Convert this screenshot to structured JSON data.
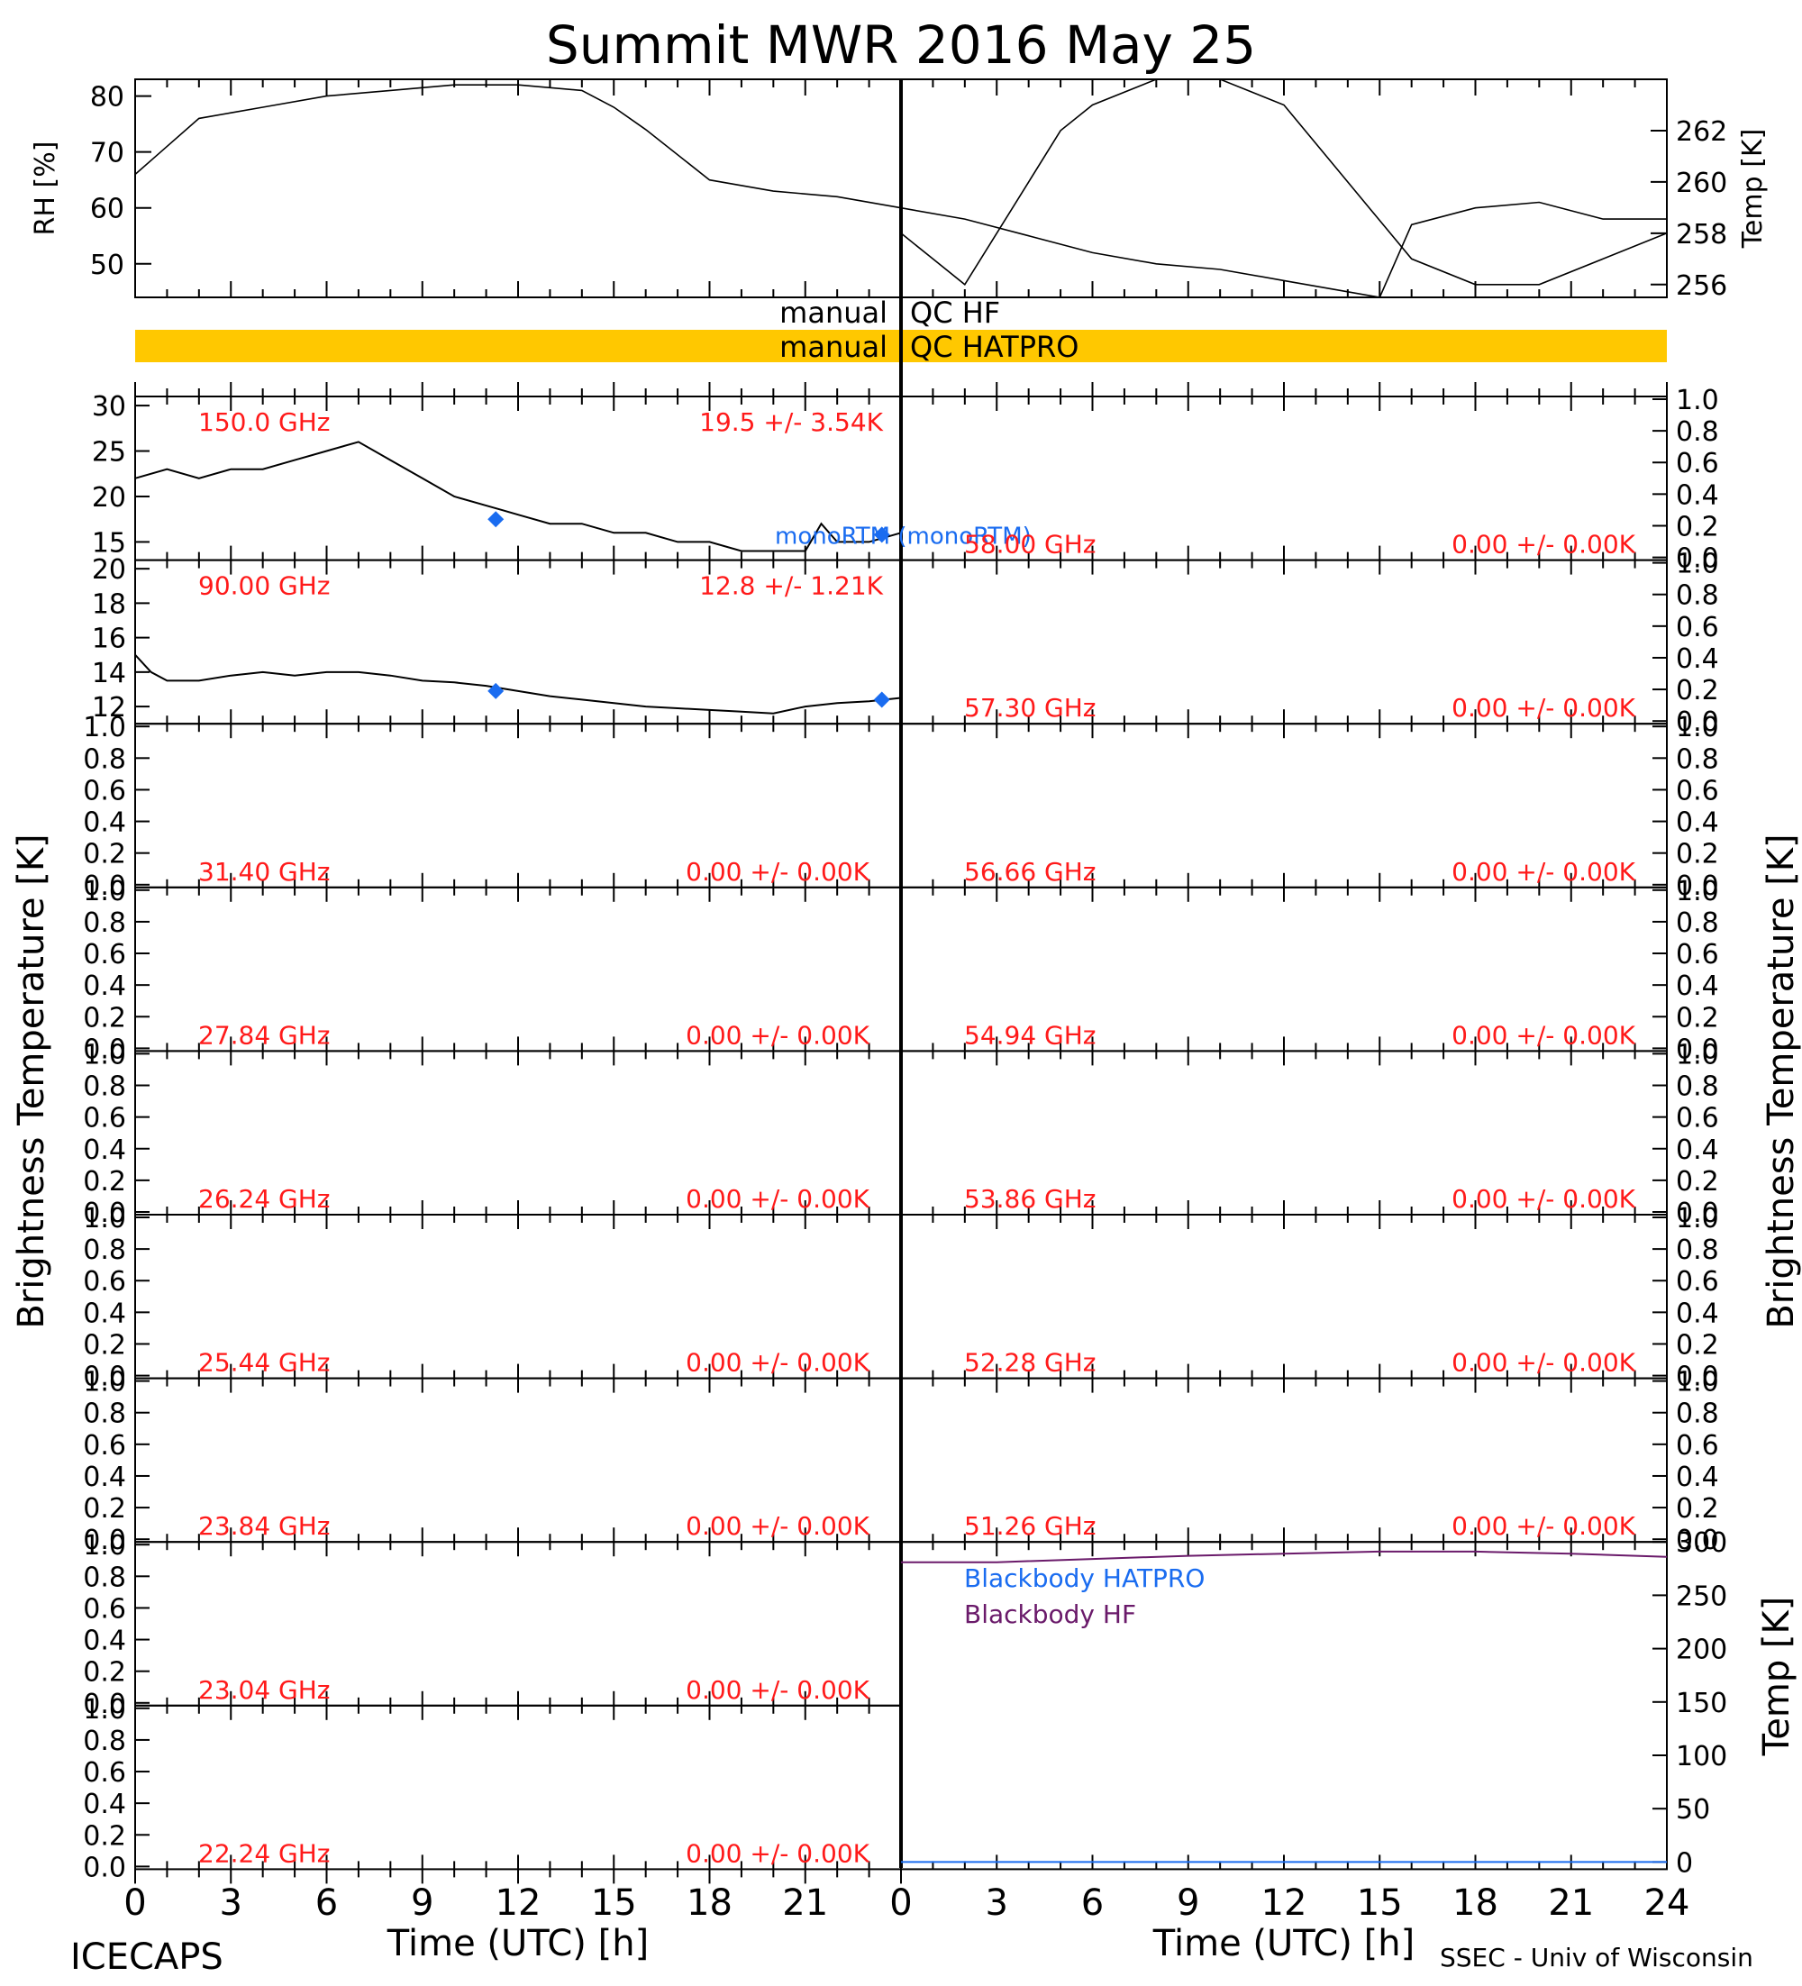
{
  "title": "Summit MWR 2016 May 25",
  "footer": {
    "left": "ICECAPS",
    "right": "SSEC - Univ of Wisconsin"
  },
  "xaxis": {
    "label": "Time (UTC) [h]",
    "ticks": [
      "0",
      "3",
      "6",
      "9",
      "12",
      "15",
      "18",
      "21",
      "24"
    ],
    "left_ticks": [
      "0",
      "3",
      "6",
      "9",
      "12",
      "15",
      "18",
      "21"
    ]
  },
  "ylabel_bt": "Brightness Temperature [K]",
  "colors": {
    "text": "#000000",
    "freq_label": "#ff1a1a",
    "monortm": "#1a6cf0",
    "qc_bar": "#ffc800",
    "bb_hatpro": "#1a6cf0",
    "bb_hf": "#6a1a6a"
  },
  "qc": {
    "hf_left": "manual",
    "hf_right": "QC HF",
    "hatpro_left": "manual",
    "hatpro_right": "QC HATPRO"
  },
  "chart_data": [
    {
      "type": "line",
      "panel": "rh",
      "ylabel": "RH [%]",
      "yticks": [
        "50",
        "60",
        "70",
        "80"
      ],
      "ylim": [
        44,
        83
      ],
      "xlim": [
        0,
        12
      ],
      "x": [
        0,
        0.4,
        1,
        1.5,
        2,
        3,
        4,
        5,
        6,
        7,
        7.5,
        8,
        9,
        10,
        11,
        12
      ],
      "y": [
        66,
        70,
        76,
        77,
        78,
        80,
        81,
        82,
        82,
        81,
        78,
        74,
        65,
        63,
        62,
        60
      ]
    },
    {
      "type": "line",
      "panel": "temp",
      "ylabel": "Temp [K]",
      "yticks": [
        "256",
        "258",
        "260",
        "262"
      ],
      "ylim": [
        255.5,
        264
      ],
      "xlim": [
        12,
        24
      ],
      "x": [
        12,
        12.5,
        13,
        13.5,
        14,
        14.5,
        15,
        16,
        17,
        18,
        19,
        20,
        21,
        22,
        23,
        24
      ],
      "y": [
        258,
        257,
        256,
        258,
        260,
        262,
        263,
        264,
        264,
        263,
        260,
        257,
        256,
        256,
        257,
        258
      ]
    },
    {
      "type": "line",
      "panel": "rh2",
      "ylabel": "",
      "yticks": [],
      "ylim": [
        44,
        83
      ],
      "xlim": [
        12,
        24
      ],
      "x": [
        12,
        13,
        14,
        15,
        16,
        17,
        18,
        19,
        19.5,
        20,
        21,
        22,
        23,
        24
      ],
      "y": [
        60,
        58,
        55,
        52,
        50,
        49,
        47,
        45,
        44,
        57,
        60,
        61,
        58,
        58
      ]
    },
    {
      "type": "line",
      "panel": "bt-150",
      "freq": "150.0 GHz",
      "stats": "19.5 +/-  3.54K",
      "ylim": [
        13,
        31
      ],
      "yticks": [
        "15",
        "20",
        "25",
        "30"
      ],
      "xlim": [
        0,
        24
      ],
      "x": [
        0,
        1,
        2,
        3,
        4,
        5,
        6,
        7,
        8,
        9,
        10,
        11,
        11.5,
        12,
        13,
        14,
        15,
        16,
        17,
        18,
        19,
        20,
        21,
        21.5,
        22,
        23,
        24
      ],
      "y": [
        22,
        23,
        22,
        23,
        23,
        24,
        25,
        26,
        24,
        22,
        20,
        19,
        18.5,
        18,
        17,
        17,
        16,
        16,
        15,
        15,
        14,
        14,
        14,
        17,
        15,
        15,
        16
      ],
      "monortm": {
        "label": "monoRTM (monoRTM)",
        "points": [
          [
            11.3,
            17.5
          ],
          [
            23.4,
            15.8
          ]
        ]
      }
    },
    {
      "type": "line",
      "panel": "bt-90",
      "freq": "90.00 GHz",
      "stats": "12.8 +/-  1.21K",
      "ylim": [
        11,
        20.5
      ],
      "yticks": [
        "12",
        "14",
        "16",
        "18",
        "20"
      ],
      "xlim": [
        0,
        24
      ],
      "x": [
        0,
        0.5,
        1,
        2,
        3,
        4,
        5,
        6,
        7,
        8,
        9,
        10,
        11,
        12,
        13,
        14,
        15,
        16,
        17,
        18,
        19,
        20,
        21,
        22,
        23,
        24
      ],
      "y": [
        15,
        14,
        13.5,
        13.5,
        13.8,
        14,
        13.8,
        14,
        14,
        13.8,
        13.5,
        13.4,
        13.2,
        12.9,
        12.6,
        12.4,
        12.2,
        12,
        11.9,
        11.8,
        11.7,
        11.6,
        12,
        12.2,
        12.3,
        12.5
      ],
      "monortm": {
        "points": [
          [
            11.3,
            12.9
          ],
          [
            23.4,
            12.4
          ]
        ]
      }
    },
    {
      "type": "line",
      "panel": "bt-empty",
      "ylim": [
        0,
        1
      ],
      "yticks": [
        "0.0",
        "0.2",
        "0.4",
        "0.6",
        "0.8",
        "1.0"
      ],
      "channels_left": [
        {
          "freq": "31.40 GHz",
          "stats": "0.00 +/-  0.00K"
        },
        {
          "freq": "27.84 GHz",
          "stats": "0.00 +/-  0.00K"
        },
        {
          "freq": "26.24 GHz",
          "stats": "0.00 +/-  0.00K"
        },
        {
          "freq": "25.44 GHz",
          "stats": "0.00 +/-  0.00K"
        },
        {
          "freq": "23.84 GHz",
          "stats": "0.00 +/-  0.00K"
        },
        {
          "freq": "23.04 GHz",
          "stats": "0.00 +/-  0.00K"
        },
        {
          "freq": "22.24 GHz",
          "stats": "0.00 +/-  0.00K"
        }
      ],
      "channels_right": [
        {
          "freq": "58.00 GHz",
          "stats": "0.00 +/-  0.00K"
        },
        {
          "freq": "57.30 GHz",
          "stats": "0.00 +/-  0.00K"
        },
        {
          "freq": "56.66 GHz",
          "stats": "0.00 +/-  0.00K"
        },
        {
          "freq": "54.94 GHz",
          "stats": "0.00 +/-  0.00K"
        },
        {
          "freq": "53.86 GHz",
          "stats": "0.00 +/-  0.00K"
        },
        {
          "freq": "52.28 GHz",
          "stats": "0.00 +/-  0.00K"
        },
        {
          "freq": "51.26 GHz",
          "stats": "0.00 +/-  0.00K"
        }
      ]
    },
    {
      "type": "line",
      "panel": "blackbody",
      "ylabel": "Temp [K]",
      "yticks": [
        "0",
        "50",
        "100",
        "150",
        "200",
        "250",
        "300"
      ],
      "ylim": [
        0,
        300
      ],
      "xlim": [
        0,
        24
      ],
      "series": [
        {
          "name": "Blackbody HATPRO",
          "x": [
            0,
            24
          ],
          "y": [
            0,
            0
          ]
        },
        {
          "name": "Blackbody HF",
          "x": [
            0,
            3,
            6,
            9,
            12,
            15,
            18,
            21,
            24
          ],
          "y": [
            281,
            281,
            284,
            287,
            289,
            291,
            291,
            289,
            286
          ]
        }
      ]
    }
  ]
}
